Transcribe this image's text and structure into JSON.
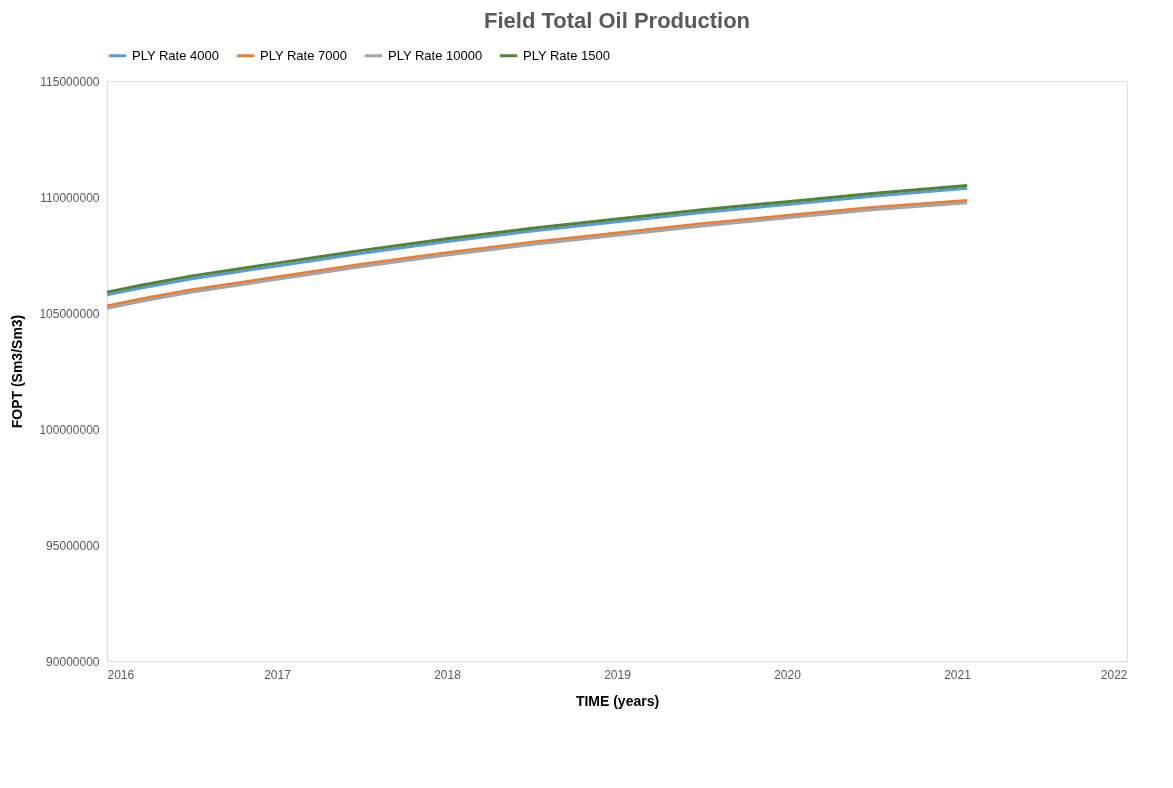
{
  "chart_data": {
    "type": "line",
    "title": "Field Total Oil Production",
    "xlabel": "TIME (years)",
    "ylabel": "FOPT (Sm3/Sm3)",
    "x": [
      2016,
      2016.2,
      2016.5,
      2017,
      2017.5,
      2018,
      2018.5,
      2019,
      2019.5,
      2020,
      2020.5,
      2021.06
    ],
    "series": [
      {
        "name": "PLY Rate 4000",
        "color": "#5b9bd5",
        "values": [
          105780000,
          106080000,
          106480000,
          107030000,
          107580000,
          108080000,
          108530000,
          108930000,
          109330000,
          109680000,
          110030000,
          110380000
        ]
      },
      {
        "name": "PLY Rate 7000",
        "color": "#ed7d31",
        "values": [
          105300000,
          105600000,
          106000000,
          106550000,
          107100000,
          107600000,
          108050000,
          108450000,
          108850000,
          109200000,
          109550000,
          109850000
        ]
      },
      {
        "name": "PLY Rate 10000",
        "color": "#a5a5a5",
        "values": [
          105200000,
          105500000,
          105900000,
          106450000,
          107000000,
          107500000,
          107950000,
          108350000,
          108750000,
          109100000,
          109450000,
          109750000
        ]
      },
      {
        "name": "PLY Rate 1500",
        "color": "#548235",
        "values": [
          105900000,
          106200000,
          106600000,
          107150000,
          107700000,
          108200000,
          108650000,
          109050000,
          109450000,
          109800000,
          110150000,
          110500000
        ]
      }
    ],
    "xlim": [
      2016,
      2022
    ],
    "xticks": [
      2016,
      2017,
      2018,
      2019,
      2020,
      2021,
      2022
    ],
    "ylim": [
      90000000,
      115000000
    ],
    "yticks": [
      90000000,
      95000000,
      100000000,
      105000000,
      110000000,
      115000000
    ],
    "grid": false,
    "legend": "top",
    "marker": "none",
    "line_style": "solid"
  }
}
